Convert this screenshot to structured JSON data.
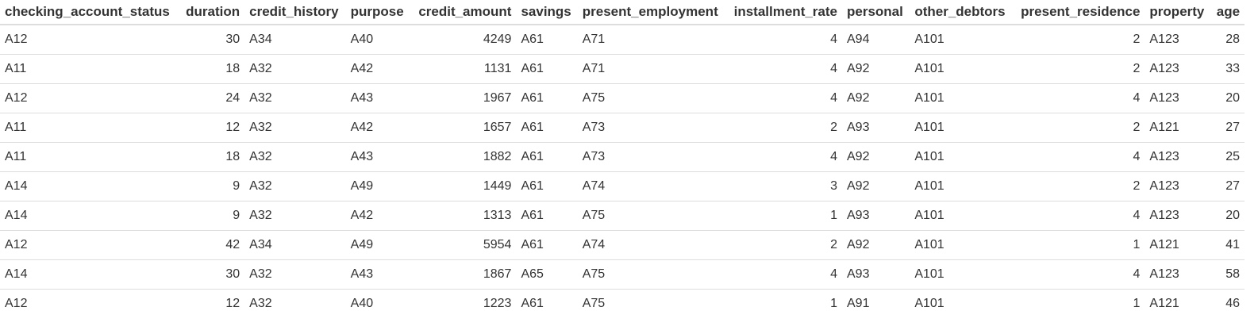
{
  "table": {
    "columns": [
      {
        "label": "checking_account_status",
        "align": "l"
      },
      {
        "label": "duration",
        "align": "r"
      },
      {
        "label": "credit_history",
        "align": "l"
      },
      {
        "label": "purpose",
        "align": "l"
      },
      {
        "label": "credit_amount",
        "align": "r"
      },
      {
        "label": "savings",
        "align": "l"
      },
      {
        "label": "present_employment",
        "align": "l"
      },
      {
        "label": "installment_rate",
        "align": "r"
      },
      {
        "label": "personal",
        "align": "l"
      },
      {
        "label": "other_debtors",
        "align": "l"
      },
      {
        "label": "present_residence",
        "align": "r"
      },
      {
        "label": "property",
        "align": "l"
      },
      {
        "label": "age",
        "align": "r"
      }
    ],
    "rows": [
      [
        "A12",
        "30",
        "A34",
        "A40",
        "4249",
        "A61",
        "A71",
        "4",
        "A94",
        "A101",
        "2",
        "A123",
        "28"
      ],
      [
        "A11",
        "18",
        "A32",
        "A42",
        "1131",
        "A61",
        "A71",
        "4",
        "A92",
        "A101",
        "2",
        "A123",
        "33"
      ],
      [
        "A12",
        "24",
        "A32",
        "A43",
        "1967",
        "A61",
        "A75",
        "4",
        "A92",
        "A101",
        "4",
        "A123",
        "20"
      ],
      [
        "A11",
        "12",
        "A32",
        "A42",
        "1657",
        "A61",
        "A73",
        "2",
        "A93",
        "A101",
        "2",
        "A121",
        "27"
      ],
      [
        "A11",
        "18",
        "A32",
        "A43",
        "1882",
        "A61",
        "A73",
        "4",
        "A92",
        "A101",
        "4",
        "A123",
        "25"
      ],
      [
        "A14",
        "9",
        "A32",
        "A49",
        "1449",
        "A61",
        "A74",
        "3",
        "A92",
        "A101",
        "2",
        "A123",
        "27"
      ],
      [
        "A14",
        "9",
        "A32",
        "A42",
        "1313",
        "A61",
        "A75",
        "1",
        "A93",
        "A101",
        "4",
        "A123",
        "20"
      ],
      [
        "A12",
        "42",
        "A34",
        "A49",
        "5954",
        "A61",
        "A74",
        "2",
        "A92",
        "A101",
        "1",
        "A121",
        "41"
      ],
      [
        "A14",
        "30",
        "A32",
        "A43",
        "1867",
        "A65",
        "A75",
        "4",
        "A93",
        "A101",
        "4",
        "A123",
        "58"
      ],
      [
        "A12",
        "12",
        "A32",
        "A40",
        "1223",
        "A61",
        "A75",
        "1",
        "A91",
        "A101",
        "1",
        "A121",
        "46"
      ]
    ]
  }
}
